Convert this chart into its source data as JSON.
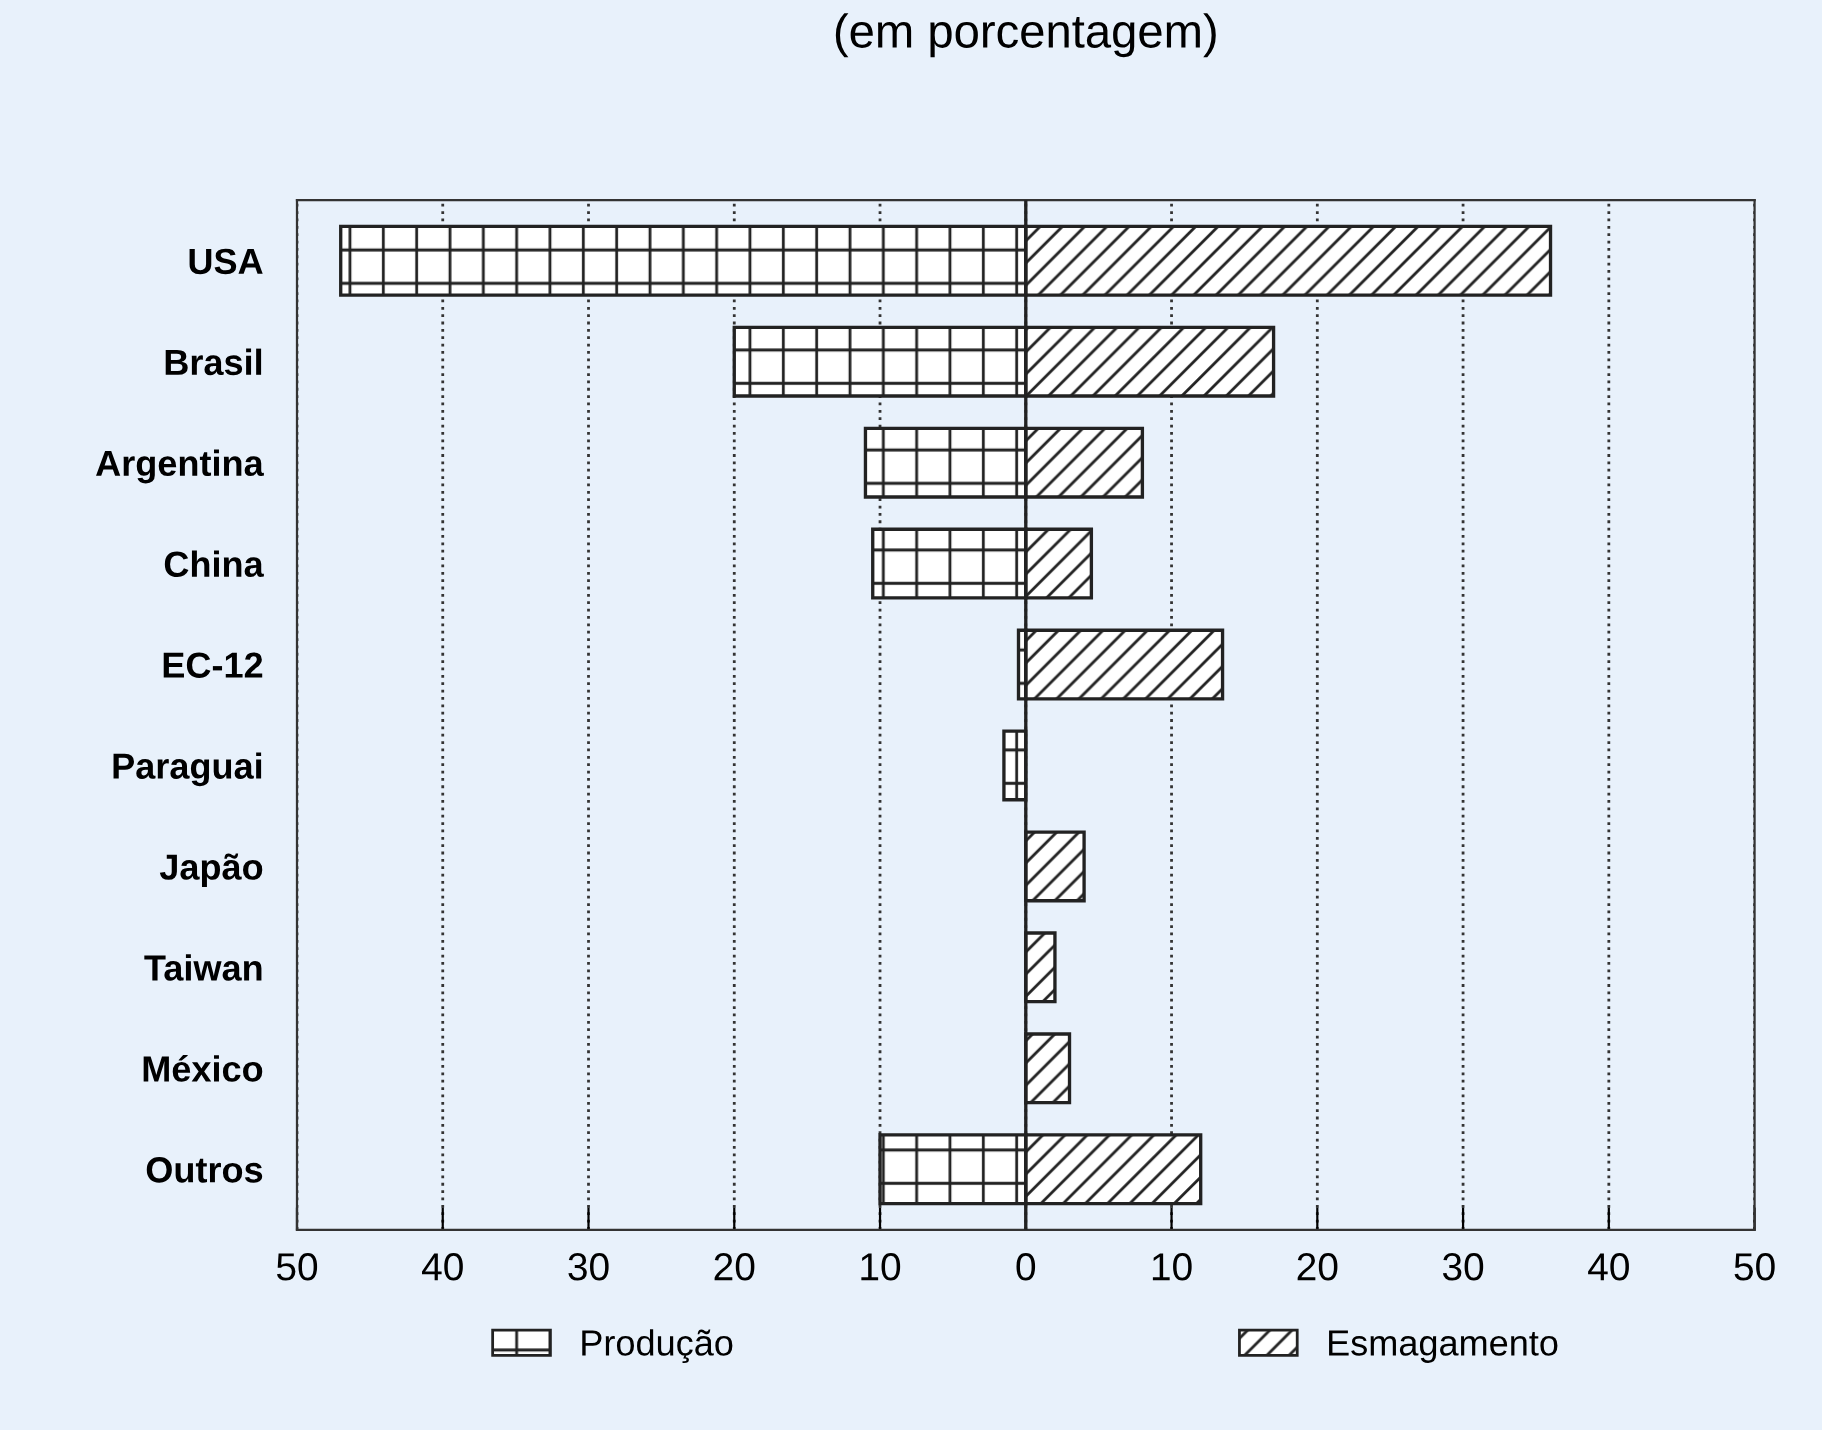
{
  "chart_data": {
    "type": "bar",
    "orientation": "horizontal",
    "title": "(em porcentagem)",
    "categories": [
      "USA",
      "Brasil",
      "Argentina",
      "China",
      "EC-12",
      "Paraguai",
      "Japão",
      "Taiwan",
      "México",
      "Outros"
    ],
    "series": [
      {
        "name": "Produção",
        "color": "#222222",
        "values": [
          -47,
          -20,
          -11,
          -10.5,
          -0.5,
          -1.5,
          null,
          null,
          null,
          -10
        ]
      },
      {
        "name": "Esmagamento",
        "color": "#222222",
        "values": [
          36,
          17,
          8,
          4.5,
          13.5,
          null,
          4,
          2,
          3,
          12
        ]
      }
    ],
    "xlim": [
      -50,
      50
    ],
    "xticks": [
      {
        "value": -50,
        "label": "50"
      },
      {
        "value": -40,
        "label": "40"
      },
      {
        "value": -30,
        "label": "30"
      },
      {
        "value": -20,
        "label": "20"
      },
      {
        "value": -10,
        "label": "10"
      },
      0,
      10,
      20,
      30,
      40,
      50
    ],
    "ref_lines": [
      {
        "axis": "x",
        "value": 0,
        "line_style": "solid"
      }
    ],
    "stacked": true,
    "grid": "x",
    "line_style": "dotted",
    "legend": "bottom"
  }
}
